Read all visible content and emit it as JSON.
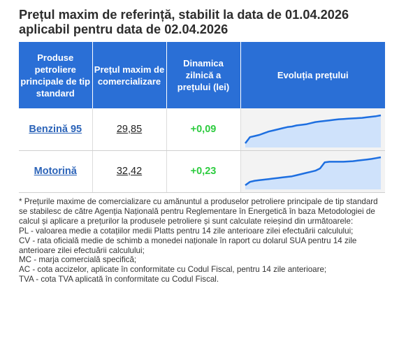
{
  "title": "Prețul maxim de referință, stabilit la data de 01.04.2026 aplicabil pentru data de 02.04.2026",
  "table": {
    "headers": [
      "Produse petroliere principale de tip standard",
      "Prețul maxim de comercializare",
      "Dinamica zilnică a prețului (lei)",
      "Evoluția prețului"
    ],
    "rows": [
      {
        "name": "Benzină 95",
        "price": "29,85",
        "delta": "+0,09"
      },
      {
        "name": "Motorină",
        "price": "32,42",
        "delta": "+0,23"
      }
    ]
  },
  "chart_data": [
    {
      "type": "area",
      "x": [
        1,
        2,
        3,
        4,
        5,
        6,
        7,
        8,
        9,
        10,
        11,
        12,
        13,
        14,
        15,
        16,
        17,
        18,
        19,
        20,
        21,
        22,
        23,
        24,
        25,
        26,
        27,
        28,
        29,
        30
      ],
      "values": [
        0.0,
        0.22,
        0.26,
        0.3,
        0.36,
        0.42,
        0.46,
        0.5,
        0.54,
        0.58,
        0.6,
        0.64,
        0.66,
        0.68,
        0.72,
        0.76,
        0.78,
        0.8,
        0.82,
        0.84,
        0.86,
        0.87,
        0.88,
        0.89,
        0.9,
        0.91,
        0.93,
        0.95,
        0.97,
        1.0
      ]
    },
    {
      "type": "area",
      "x": [
        1,
        2,
        3,
        4,
        5,
        6,
        7,
        8,
        9,
        10,
        11,
        12,
        13,
        14,
        15,
        16,
        17,
        18,
        19,
        20,
        21,
        22,
        23,
        24,
        25,
        26,
        27,
        28,
        29,
        30
      ],
      "values": [
        0.0,
        0.12,
        0.16,
        0.18,
        0.2,
        0.22,
        0.24,
        0.26,
        0.28,
        0.3,
        0.32,
        0.36,
        0.4,
        0.44,
        0.48,
        0.52,
        0.6,
        0.82,
        0.84,
        0.84,
        0.84,
        0.84,
        0.85,
        0.86,
        0.88,
        0.9,
        0.92,
        0.94,
        0.97,
        1.0
      ]
    }
  ],
  "chart_color": "#1e6fe0",
  "chart_fill": "#cfe2fb",
  "notes": [
    "* Prețurile maxime de comercializare cu amănuntul a produselor petroliere principale de tip standard se stabilesc de către Agenția Națională pentru Reglementare în Energetică în baza Metodologiei de calcul și aplicare a prețurilor la produsele petroliere și sunt calculate reieșind din următoarele:",
    "PL - valoarea medie a cotațiilor medii Platts pentru 14 zile anterioare zilei efectuării calculului;",
    "CV - rata oficială medie de schimb a monedei naționale în raport cu dolarul SUA pentru 14 zile anterioare zilei efectuării calculului;",
    "MC - marja comercială specifică;",
    "AC - cota accizelor, aplicate în conformitate cu Codul Fiscal, pentru 14 zile anterioare;",
    "TVA - cota TVA aplicată în conformitate cu Codul Fiscal."
  ]
}
